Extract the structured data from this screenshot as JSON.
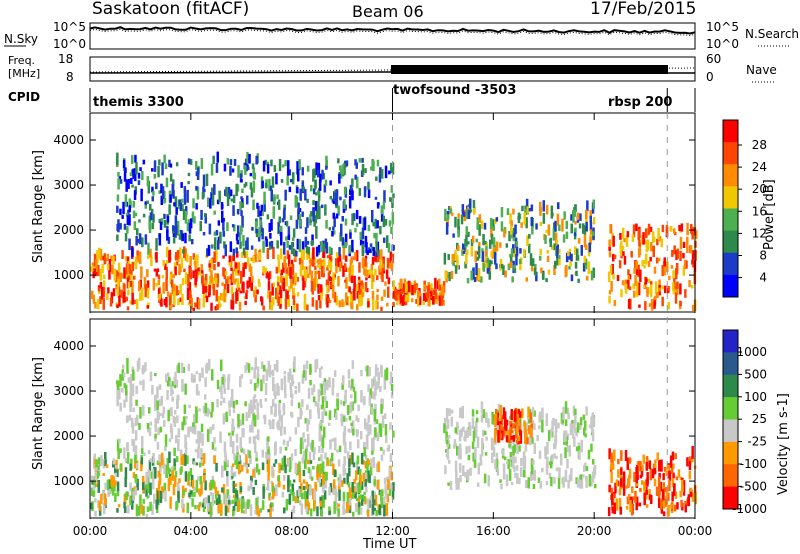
{
  "header": {
    "station": "Saskatoon (fitACF)",
    "beam": "Beam 06",
    "date": "17/Feb/2015"
  },
  "noise_panel": {
    "left_label": "N.Sky",
    "left_ticks": [
      "10^5",
      "10^0"
    ],
    "right_ticks": [
      "10^5",
      "10^0"
    ],
    "right_label": "N.Search"
  },
  "freq_panel": {
    "left_label_line1": "Freq.",
    "left_label_line2": "[MHz]",
    "left_ticks": [
      "18",
      "8"
    ],
    "right_ticks": [
      "60",
      "0"
    ],
    "right_label": "Nave"
  },
  "cpid": {
    "label": "CPID",
    "segments": [
      {
        "name": "themis 3300"
      },
      {
        "name": "twofsound -3503"
      },
      {
        "name": "rbsp 200"
      }
    ],
    "boundaries_hours": [
      12.0,
      22.9
    ]
  },
  "chart_data": [
    {
      "type": "heatmap",
      "parameter": "Power",
      "ylabel": "Slant Range [km]",
      "ylim": [
        180,
        4600
      ],
      "yticks": [
        1000,
        2000,
        3000,
        4000
      ],
      "xlim_hours": [
        0,
        24
      ],
      "colorbar": {
        "label": "Power [dB]",
        "ticks": [
          "28",
          "24",
          "20",
          "16",
          "12",
          "8",
          "4"
        ],
        "range": [
          0,
          32
        ],
        "colors": [
          "#0000ff",
          "#1a3cc8",
          "#2e8a4a",
          "#4caf50",
          "#f0c800",
          "#ff8c00",
          "#ff4500",
          "#ff0000"
        ]
      },
      "echo_regions": [
        {
          "t0": 0.0,
          "t1": 12.0,
          "r0": 200,
          "r1": 1400,
          "level": "strong"
        },
        {
          "t0": 1.0,
          "t1": 12.0,
          "r0": 1400,
          "r1": 3500,
          "level": "weak"
        },
        {
          "t0": 12.0,
          "t1": 14.0,
          "r0": 300,
          "r1": 700,
          "level": "strong"
        },
        {
          "t0": 14.0,
          "t1": 20.0,
          "r0": 800,
          "r1": 2500,
          "level": "medium"
        },
        {
          "t0": 20.5,
          "t1": 24.0,
          "r0": 200,
          "r1": 2000,
          "level": "strong"
        }
      ]
    },
    {
      "type": "heatmap",
      "parameter": "Velocity",
      "ylabel": "Slant Range [km]",
      "ylim": [
        180,
        4600
      ],
      "yticks": [
        1000,
        2000,
        3000,
        4000
      ],
      "xlim_hours": [
        0,
        24
      ],
      "colorbar": {
        "label": "Velocity [m s-1]",
        "ticks": [
          "1000",
          "500",
          "100",
          "25",
          "-25",
          "-100",
          "-500",
          "-1000"
        ],
        "colors": [
          "#2323c8",
          "#2a5a8c",
          "#2e8a4a",
          "#66cc33",
          "#c8c8c8",
          "#ff9900",
          "#ff6600",
          "#ff0000"
        ]
      },
      "echo_regions": [
        {
          "t0": 0.0,
          "t1": 12.0,
          "r0": 200,
          "r1": 1400,
          "level": "toward"
        },
        {
          "t0": 1.0,
          "t1": 12.0,
          "r0": 1400,
          "r1": 3500,
          "level": "ground"
        },
        {
          "t0": 14.0,
          "t1": 20.0,
          "r0": 800,
          "r1": 2500,
          "level": "ground"
        },
        {
          "t0": 16.0,
          "t1": 17.5,
          "r0": 1800,
          "r1": 2500,
          "level": "away"
        },
        {
          "t0": 20.5,
          "t1": 24.0,
          "r0": 200,
          "r1": 1500,
          "level": "away"
        }
      ]
    }
  ],
  "xaxis": {
    "ticks": [
      "00:00",
      "04:00",
      "08:00",
      "12:00",
      "16:00",
      "20:00",
      "00:00"
    ],
    "label": "Time UT"
  }
}
